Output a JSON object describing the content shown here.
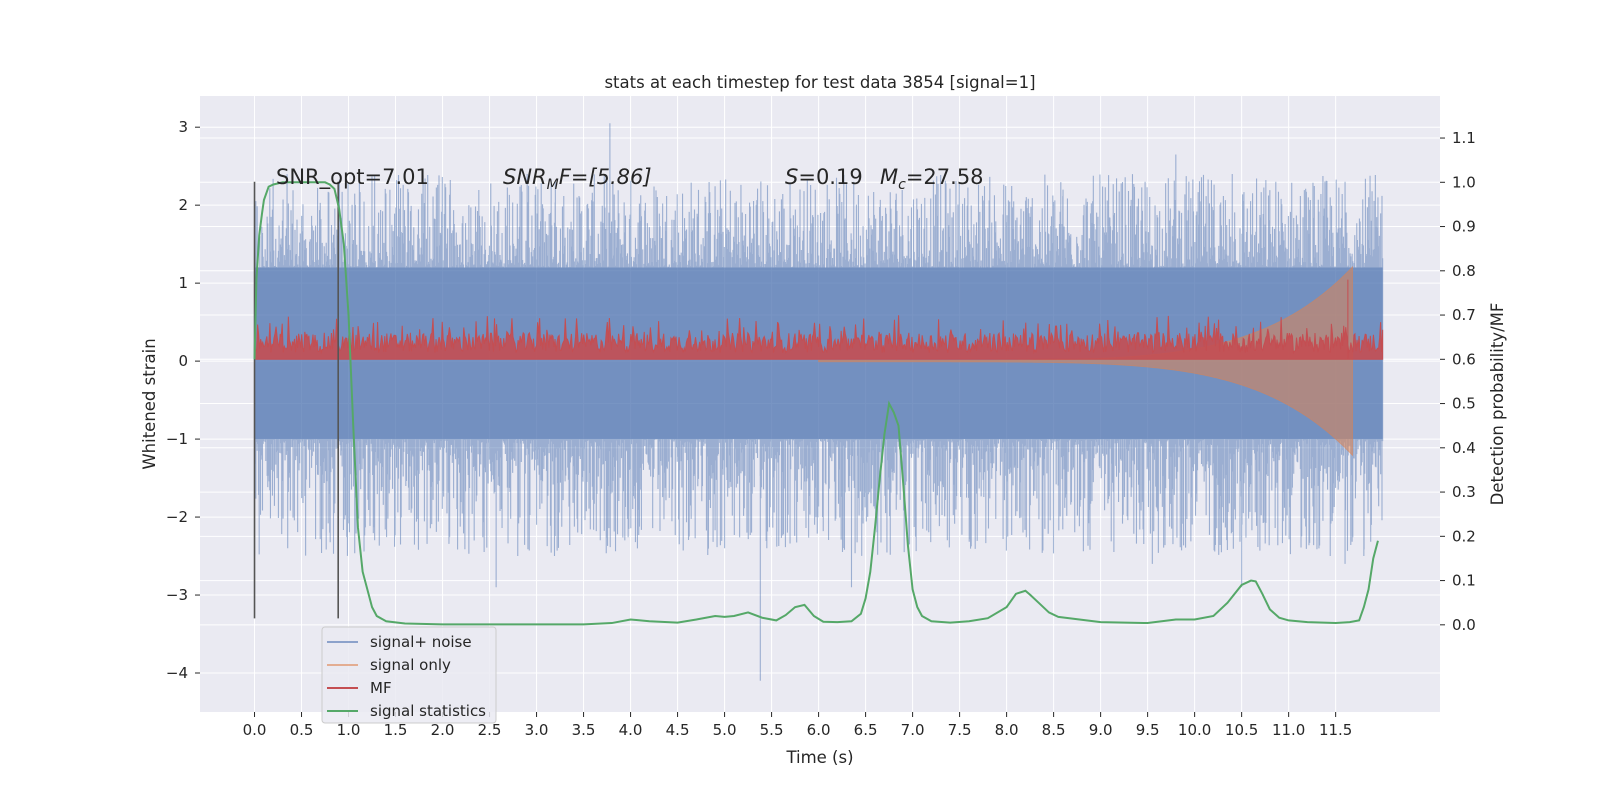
{
  "chart_data": {
    "type": "line",
    "title": "stats at each timestep for test data 3854 [signal=1]",
    "xlabel": "Time (s)",
    "ylabel_left": "Whitened strain",
    "ylabel_right": "Detection probability/MF",
    "xlim": [
      -0.58,
      12.61
    ],
    "ylim_left": [
      -4.5,
      3.4
    ],
    "ylim_right": [
      -0.197,
      1.195
    ],
    "x_ticks": [
      0.0,
      0.5,
      1.0,
      1.5,
      2.0,
      2.5,
      3.0,
      3.5,
      4.0,
      4.5,
      5.0,
      5.5,
      6.0,
      6.5,
      7.0,
      7.5,
      8.0,
      8.5,
      9.0,
      9.5,
      10.0,
      10.5,
      11.0,
      11.5
    ],
    "x_tick_labels": [
      "0.0",
      "0.5",
      "1.0",
      "1.5",
      "2.0",
      "2.5",
      "3.0",
      "3.5",
      "4.0",
      "4.5",
      "5.0",
      "5.5",
      "6.0",
      "6.5",
      "7.0",
      "7.5",
      "8.0",
      "8.5",
      "9.0",
      "9.5",
      "10.0",
      "10.5",
      "11.0",
      "11.5"
    ],
    "y_left_ticks": [
      3,
      2,
      1,
      0,
      -1,
      -2,
      -3,
      -4
    ],
    "y_left_tick_labels": [
      "3",
      "2",
      "1",
      "0",
      "−1",
      "−2",
      "−3",
      "−4"
    ],
    "y_right_ticks": [
      1.1,
      1.0,
      0.9,
      0.8,
      0.7,
      0.6,
      0.5,
      0.4,
      0.3,
      0.2,
      0.1,
      0.0
    ],
    "y_right_tick_labels": [
      "1.1",
      "1.0",
      "0.9",
      "0.8",
      "0.7",
      "0.6",
      "0.5",
      "0.4",
      "0.3",
      "0.2",
      "0.1",
      "0.0"
    ],
    "grid": true,
    "legend_position": "lower-left",
    "annotations": {
      "snr_opt": "SNR_opt=7.01",
      "snr_mf_base": "SNR",
      "snr_mf_sub": "M",
      "snr_mf_rest": "F=[5.86]",
      "s_var": "S",
      "s_val": "=0.19",
      "mc_var": "M",
      "mc_sub": "c",
      "mc_val": "=27.58"
    },
    "vertical_lines": [
      {
        "x": 0.0,
        "y_range": [
          -3.3,
          2.3
        ]
      },
      {
        "x": 0.89,
        "y_range": [
          -3.3,
          2.3
        ]
      }
    ],
    "series": [
      {
        "name": "signal+ noise",
        "axis": "left",
        "color": "#4c72b0",
        "kind": "noise",
        "x_range": [
          0.0,
          12.0
        ],
        "core_range": [
          -1.0,
          1.2
        ],
        "typical_peaks": [
          1.5,
          -1.6
        ],
        "notable_peaks": [
          {
            "x": 3.78,
            "y": 3.05
          },
          {
            "x": 2.9,
            "y": 2.4
          },
          {
            "x": 3.2,
            "y": 2.3
          },
          {
            "x": 9.8,
            "y": 2.65
          },
          {
            "x": 10.4,
            "y": 2.4
          },
          {
            "x": 8.6,
            "y": 2.2
          },
          {
            "x": 11.6,
            "y": 2.3
          },
          {
            "x": 11.95,
            "y": 2.1
          },
          {
            "x": 5.38,
            "y": -4.1
          },
          {
            "x": 2.57,
            "y": -2.9
          },
          {
            "x": 6.35,
            "y": -2.9
          },
          {
            "x": 2.8,
            "y": -2.5
          },
          {
            "x": 9.55,
            "y": -2.6
          },
          {
            "x": 11.6,
            "y": -2.6
          },
          {
            "x": 11.8,
            "y": -2.5
          },
          {
            "x": 10.5,
            "y": -2.9
          },
          {
            "x": 5.0,
            "y": -2.4
          },
          {
            "x": 0.8,
            "y": -2.2
          }
        ]
      },
      {
        "name": "signal only",
        "axis": "left",
        "color": "#dd8452",
        "kind": "chirp",
        "x_range": [
          6.0,
          11.68
        ],
        "peak_amplitude": 1.2
      },
      {
        "name": "MF",
        "axis": "right",
        "color": "#c44e52",
        "kind": "band",
        "x_range": [
          0.0,
          12.0
        ],
        "base": 0.6,
        "typical_top": 0.66,
        "max_top": 0.7,
        "spike": {
          "x": 11.63,
          "y": 0.78
        }
      },
      {
        "name": "signal statistics",
        "axis": "right",
        "color": "#55a868",
        "kind": "line",
        "x": [
          0.0,
          0.02,
          0.05,
          0.08,
          0.1,
          0.15,
          0.2,
          0.3,
          0.5,
          0.6,
          0.65,
          0.7,
          0.75,
          0.8,
          0.85,
          0.9,
          0.95,
          1.0,
          1.05,
          1.1,
          1.15,
          1.2,
          1.25,
          1.3,
          1.4,
          1.6,
          2.0,
          2.5,
          3.0,
          3.5,
          3.8,
          4.0,
          4.2,
          4.5,
          4.7,
          4.9,
          5.0,
          5.1,
          5.25,
          5.4,
          5.55,
          5.65,
          5.75,
          5.85,
          5.95,
          6.05,
          6.2,
          6.35,
          6.45,
          6.5,
          6.55,
          6.6,
          6.65,
          6.7,
          6.75,
          6.8,
          6.85,
          6.9,
          6.95,
          7.0,
          7.05,
          7.1,
          7.2,
          7.4,
          7.6,
          7.8,
          8.0,
          8.1,
          8.2,
          8.25,
          8.35,
          8.45,
          8.55,
          8.7,
          9.0,
          9.5,
          9.8,
          10.0,
          10.2,
          10.35,
          10.5,
          10.6,
          10.65,
          10.72,
          10.8,
          10.9,
          11.0,
          11.2,
          11.5,
          11.65,
          11.75,
          11.8,
          11.85,
          11.9,
          11.95
        ],
        "y": [
          0.6,
          0.78,
          0.88,
          0.93,
          0.96,
          0.99,
          0.995,
          1.0,
          1.0,
          1.0,
          1.0,
          1.0,
          1.0,
          0.995,
          0.985,
          0.94,
          0.86,
          0.7,
          0.45,
          0.22,
          0.12,
          0.08,
          0.04,
          0.02,
          0.008,
          0.003,
          0.001,
          0.001,
          0.001,
          0.001,
          0.004,
          0.012,
          0.008,
          0.005,
          0.012,
          0.02,
          0.018,
          0.02,
          0.028,
          0.016,
          0.01,
          0.022,
          0.04,
          0.045,
          0.02,
          0.007,
          0.006,
          0.008,
          0.025,
          0.06,
          0.12,
          0.22,
          0.33,
          0.43,
          0.5,
          0.48,
          0.45,
          0.32,
          0.18,
          0.08,
          0.04,
          0.02,
          0.008,
          0.005,
          0.008,
          0.015,
          0.04,
          0.07,
          0.077,
          0.068,
          0.048,
          0.028,
          0.018,
          0.014,
          0.006,
          0.004,
          0.012,
          0.012,
          0.02,
          0.05,
          0.09,
          0.1,
          0.098,
          0.07,
          0.035,
          0.016,
          0.01,
          0.006,
          0.004,
          0.006,
          0.01,
          0.04,
          0.08,
          0.15,
          0.19
        ]
      }
    ]
  }
}
